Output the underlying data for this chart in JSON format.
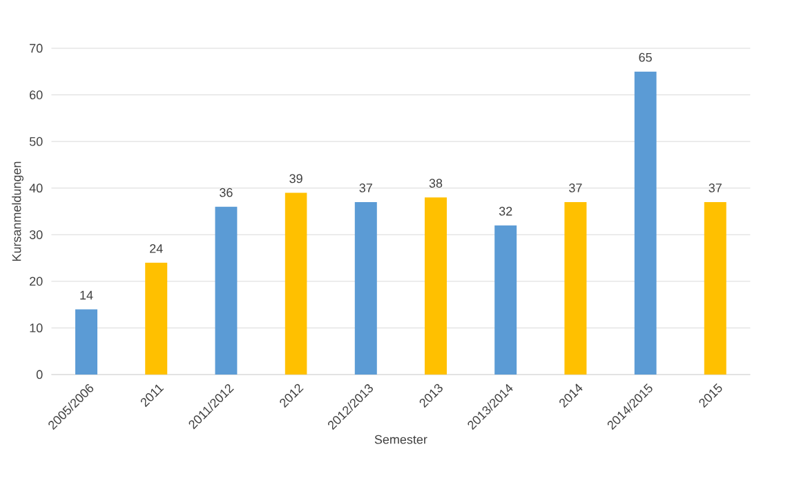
{
  "chart_data": {
    "type": "bar",
    "xlabel": "Semester",
    "ylabel": "Kursanmeldungen",
    "categories": [
      "2005/2006",
      "2011",
      "2011/2012",
      "2012",
      "2012/2013",
      "2013",
      "2013/2014",
      "2014",
      "2014/2015",
      "2015"
    ],
    "values": [
      14,
      24,
      36,
      39,
      37,
      38,
      32,
      37,
      65,
      37
    ],
    "colors": [
      "#5b9bd5",
      "#ffc000",
      "#5b9bd5",
      "#ffc000",
      "#5b9bd5",
      "#ffc000",
      "#5b9bd5",
      "#ffc000",
      "#5b9bd5",
      "#ffc000"
    ],
    "ylim": [
      0,
      70
    ],
    "yticks": [
      0,
      10,
      20,
      30,
      40,
      50,
      60,
      70
    ],
    "grid": "y",
    "data_labels": true
  }
}
